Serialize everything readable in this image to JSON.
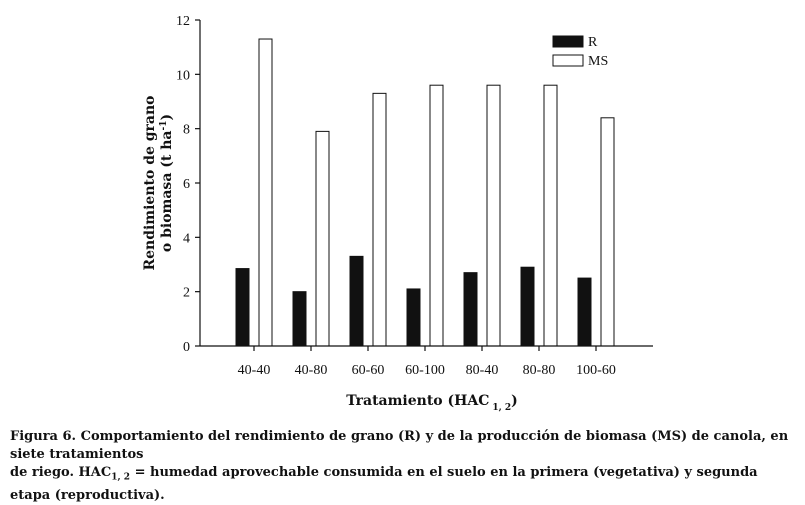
{
  "chart_data": {
    "type": "bar",
    "categories": [
      "40-40",
      "40-80",
      "60-60",
      "60-100",
      "80-40",
      "80-80",
      "100-60"
    ],
    "series": [
      {
        "name": "R",
        "color": "#111111",
        "values": [
          2.85,
          2.0,
          3.3,
          2.1,
          2.7,
          2.9,
          2.5
        ]
      },
      {
        "name": "MS",
        "color": "#ffffff",
        "values": [
          11.3,
          7.9,
          9.3,
          9.6,
          9.6,
          9.6,
          8.4
        ]
      }
    ],
    "ylabel": "Rendimiento de grano o biomasa (t ha-1)",
    "ylabel_line1": "Rendimiento de grano",
    "ylabel_line2_main": "o biomasa (t ha",
    "ylabel_line2_sup": "-1",
    "ylabel_line2_end": ")",
    "xlabel": "Tratamiento (HAC 1, 2)",
    "xlabel_main": "Tratamiento (HAC",
    "xlabel_sub": "1, 2",
    "xlabel_end": ")",
    "ylim": [
      0,
      12
    ],
    "yticks": [
      "0",
      "2",
      "4",
      "6",
      "8",
      "10",
      "12"
    ],
    "legend_position": "top-right",
    "grid": false
  },
  "caption": {
    "line1": "Figura 6. Comportamiento del rendimiento de grano (R) y de la producción de biomasa (MS) de canola, en siete tratamientos",
    "line2_start": "de riego. HAC",
    "line2_sub": "1, 2",
    "line2_end": " = humedad aprovechable consumida en el suelo en la primera (vegetativa) y segunda etapa (reproductiva)."
  }
}
